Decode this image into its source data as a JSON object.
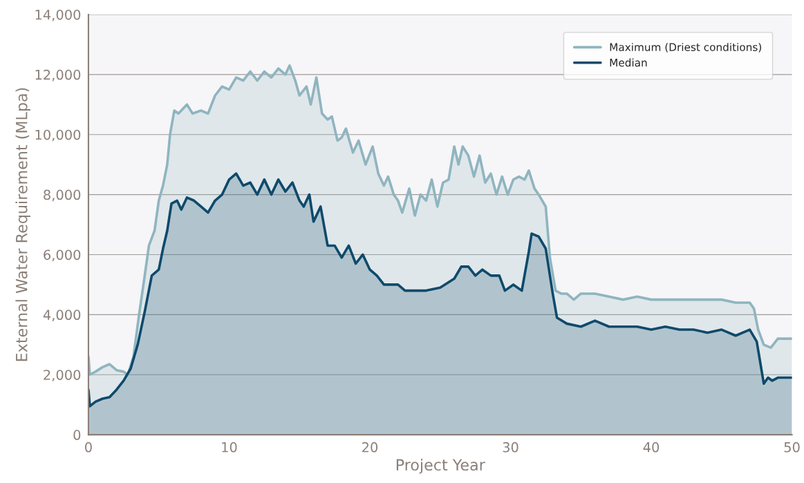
{
  "chart_data": {
    "type": "area",
    "xlabel": "Project Year",
    "ylabel": "External Water Requirement (MLpa)",
    "xlim": [
      0,
      50
    ],
    "xticks": [
      0,
      10,
      20,
      30,
      40,
      50
    ],
    "ylim": [
      0,
      14000
    ],
    "yticks": [
      {
        "value": 0,
        "label": "0"
      },
      {
        "value": 2000,
        "label": "2,000"
      },
      {
        "value": 4000,
        "label": "4,000"
      },
      {
        "value": 6000,
        "label": "6,000"
      },
      {
        "value": 8000,
        "label": "8,000"
      },
      {
        "value": 10000,
        "label": "10,000"
      },
      {
        "value": 12000,
        "label": "12,000"
      },
      {
        "value": 14000,
        "label": "14,000"
      }
    ],
    "grid": "y",
    "legend": "top right",
    "series": [
      {
        "name": "Maximum (Driest conditions)",
        "color": "#8fb5bf",
        "x": [
          0,
          0.1,
          0.5,
          1,
          1.5,
          2,
          2.5,
          2.8,
          3.2,
          3.6,
          4,
          4.3,
          4.7,
          5,
          5.3,
          5.6,
          5.8,
          6.1,
          6.4,
          7,
          7.4,
          8,
          8.5,
          9,
          9.5,
          10,
          10.5,
          11,
          11.5,
          12,
          12.5,
          13,
          13.5,
          14,
          14.3,
          14.7,
          15,
          15.5,
          15.8,
          16.2,
          16.6,
          17,
          17.3,
          17.7,
          18,
          18.3,
          18.8,
          19.2,
          19.7,
          20.2,
          20.6,
          21,
          21.3,
          21.7,
          22,
          22.3,
          22.8,
          23.2,
          23.6,
          24,
          24.4,
          24.8,
          25.2,
          25.6,
          26,
          26.3,
          26.6,
          27,
          27.4,
          27.8,
          28.2,
          28.6,
          29,
          29.4,
          29.8,
          30.2,
          30.6,
          31,
          31.3,
          31.7,
          32,
          32.5,
          32.8,
          33.2,
          33.6,
          34,
          34.5,
          35,
          36,
          37,
          38,
          39,
          40,
          41,
          42,
          43,
          44,
          45,
          46,
          47,
          47.3,
          47.6,
          48,
          48.5,
          49,
          50
        ],
        "values": [
          2600,
          2000,
          2100,
          2250,
          2350,
          2150,
          2100,
          2000,
          2600,
          4000,
          5300,
          6300,
          6800,
          7800,
          8300,
          9000,
          10000,
          10800,
          10700,
          11000,
          10700,
          10800,
          10700,
          11300,
          11600,
          11500,
          11900,
          11800,
          12100,
          11800,
          12100,
          11900,
          12200,
          12000,
          12300,
          11800,
          11300,
          11600,
          11000,
          11900,
          10700,
          10500,
          10600,
          9800,
          9900,
          10200,
          9400,
          9800,
          9000,
          9600,
          8700,
          8300,
          8600,
          8000,
          7800,
          7400,
          8200,
          7300,
          8000,
          7800,
          8500,
          7600,
          8400,
          8500,
          9600,
          9000,
          9600,
          9300,
          8600,
          9300,
          8400,
          8700,
          8000,
          8600,
          8000,
          8500,
          8600,
          8500,
          8800,
          8200,
          8000,
          7600,
          5900,
          4800,
          4700,
          4700,
          4500,
          4700,
          4700,
          4600,
          4500,
          4600,
          4500,
          4500,
          4500,
          4500,
          4500,
          4500,
          4400,
          4400,
          4200,
          3500,
          3000,
          2900,
          3200,
          3200
        ]
      },
      {
        "name": "Median",
        "color": "#0e4a6b",
        "x": [
          0,
          0.1,
          0.5,
          1,
          1.5,
          2,
          2.5,
          3,
          3.5,
          4,
          4.5,
          5,
          5.3,
          5.6,
          5.9,
          6.3,
          6.6,
          7,
          7.5,
          8,
          8.5,
          9,
          9.5,
          10,
          10.5,
          11,
          11.5,
          12,
          12.5,
          13,
          13.5,
          14,
          14.5,
          15,
          15.3,
          15.7,
          16,
          16.5,
          17,
          17.5,
          18,
          18.5,
          19,
          19.5,
          20,
          20.5,
          21,
          22,
          22.5,
          24,
          25,
          26,
          26.5,
          27,
          27.5,
          28,
          28.6,
          29.2,
          29.6,
          30.2,
          30.8,
          31.3,
          31.5,
          32,
          32.5,
          33,
          33.3,
          34,
          35,
          36,
          37,
          38,
          39,
          40,
          41,
          42,
          43,
          44,
          45,
          46,
          47,
          47.5,
          48,
          48.3,
          48.6,
          49,
          50
        ],
        "values": [
          1500,
          950,
          1100,
          1200,
          1250,
          1500,
          1800,
          2200,
          3000,
          4100,
          5300,
          5500,
          6200,
          6800,
          7700,
          7800,
          7500,
          7900,
          7800,
          7600,
          7400,
          7800,
          8000,
          8500,
          8700,
          8300,
          8400,
          8000,
          8500,
          8000,
          8500,
          8100,
          8400,
          7800,
          7600,
          8000,
          7100,
          7600,
          6300,
          6300,
          5900,
          6300,
          5700,
          6000,
          5500,
          5300,
          5000,
          5000,
          4800,
          4800,
          4900,
          5200,
          5600,
          5600,
          5300,
          5500,
          5300,
          5300,
          4800,
          5000,
          4800,
          6100,
          6700,
          6600,
          6200,
          4700,
          3900,
          3700,
          3600,
          3800,
          3600,
          3600,
          3600,
          3500,
          3600,
          3500,
          3500,
          3400,
          3500,
          3300,
          3500,
          3100,
          1700,
          1900,
          1800,
          1900,
          1900
        ]
      }
    ]
  }
}
